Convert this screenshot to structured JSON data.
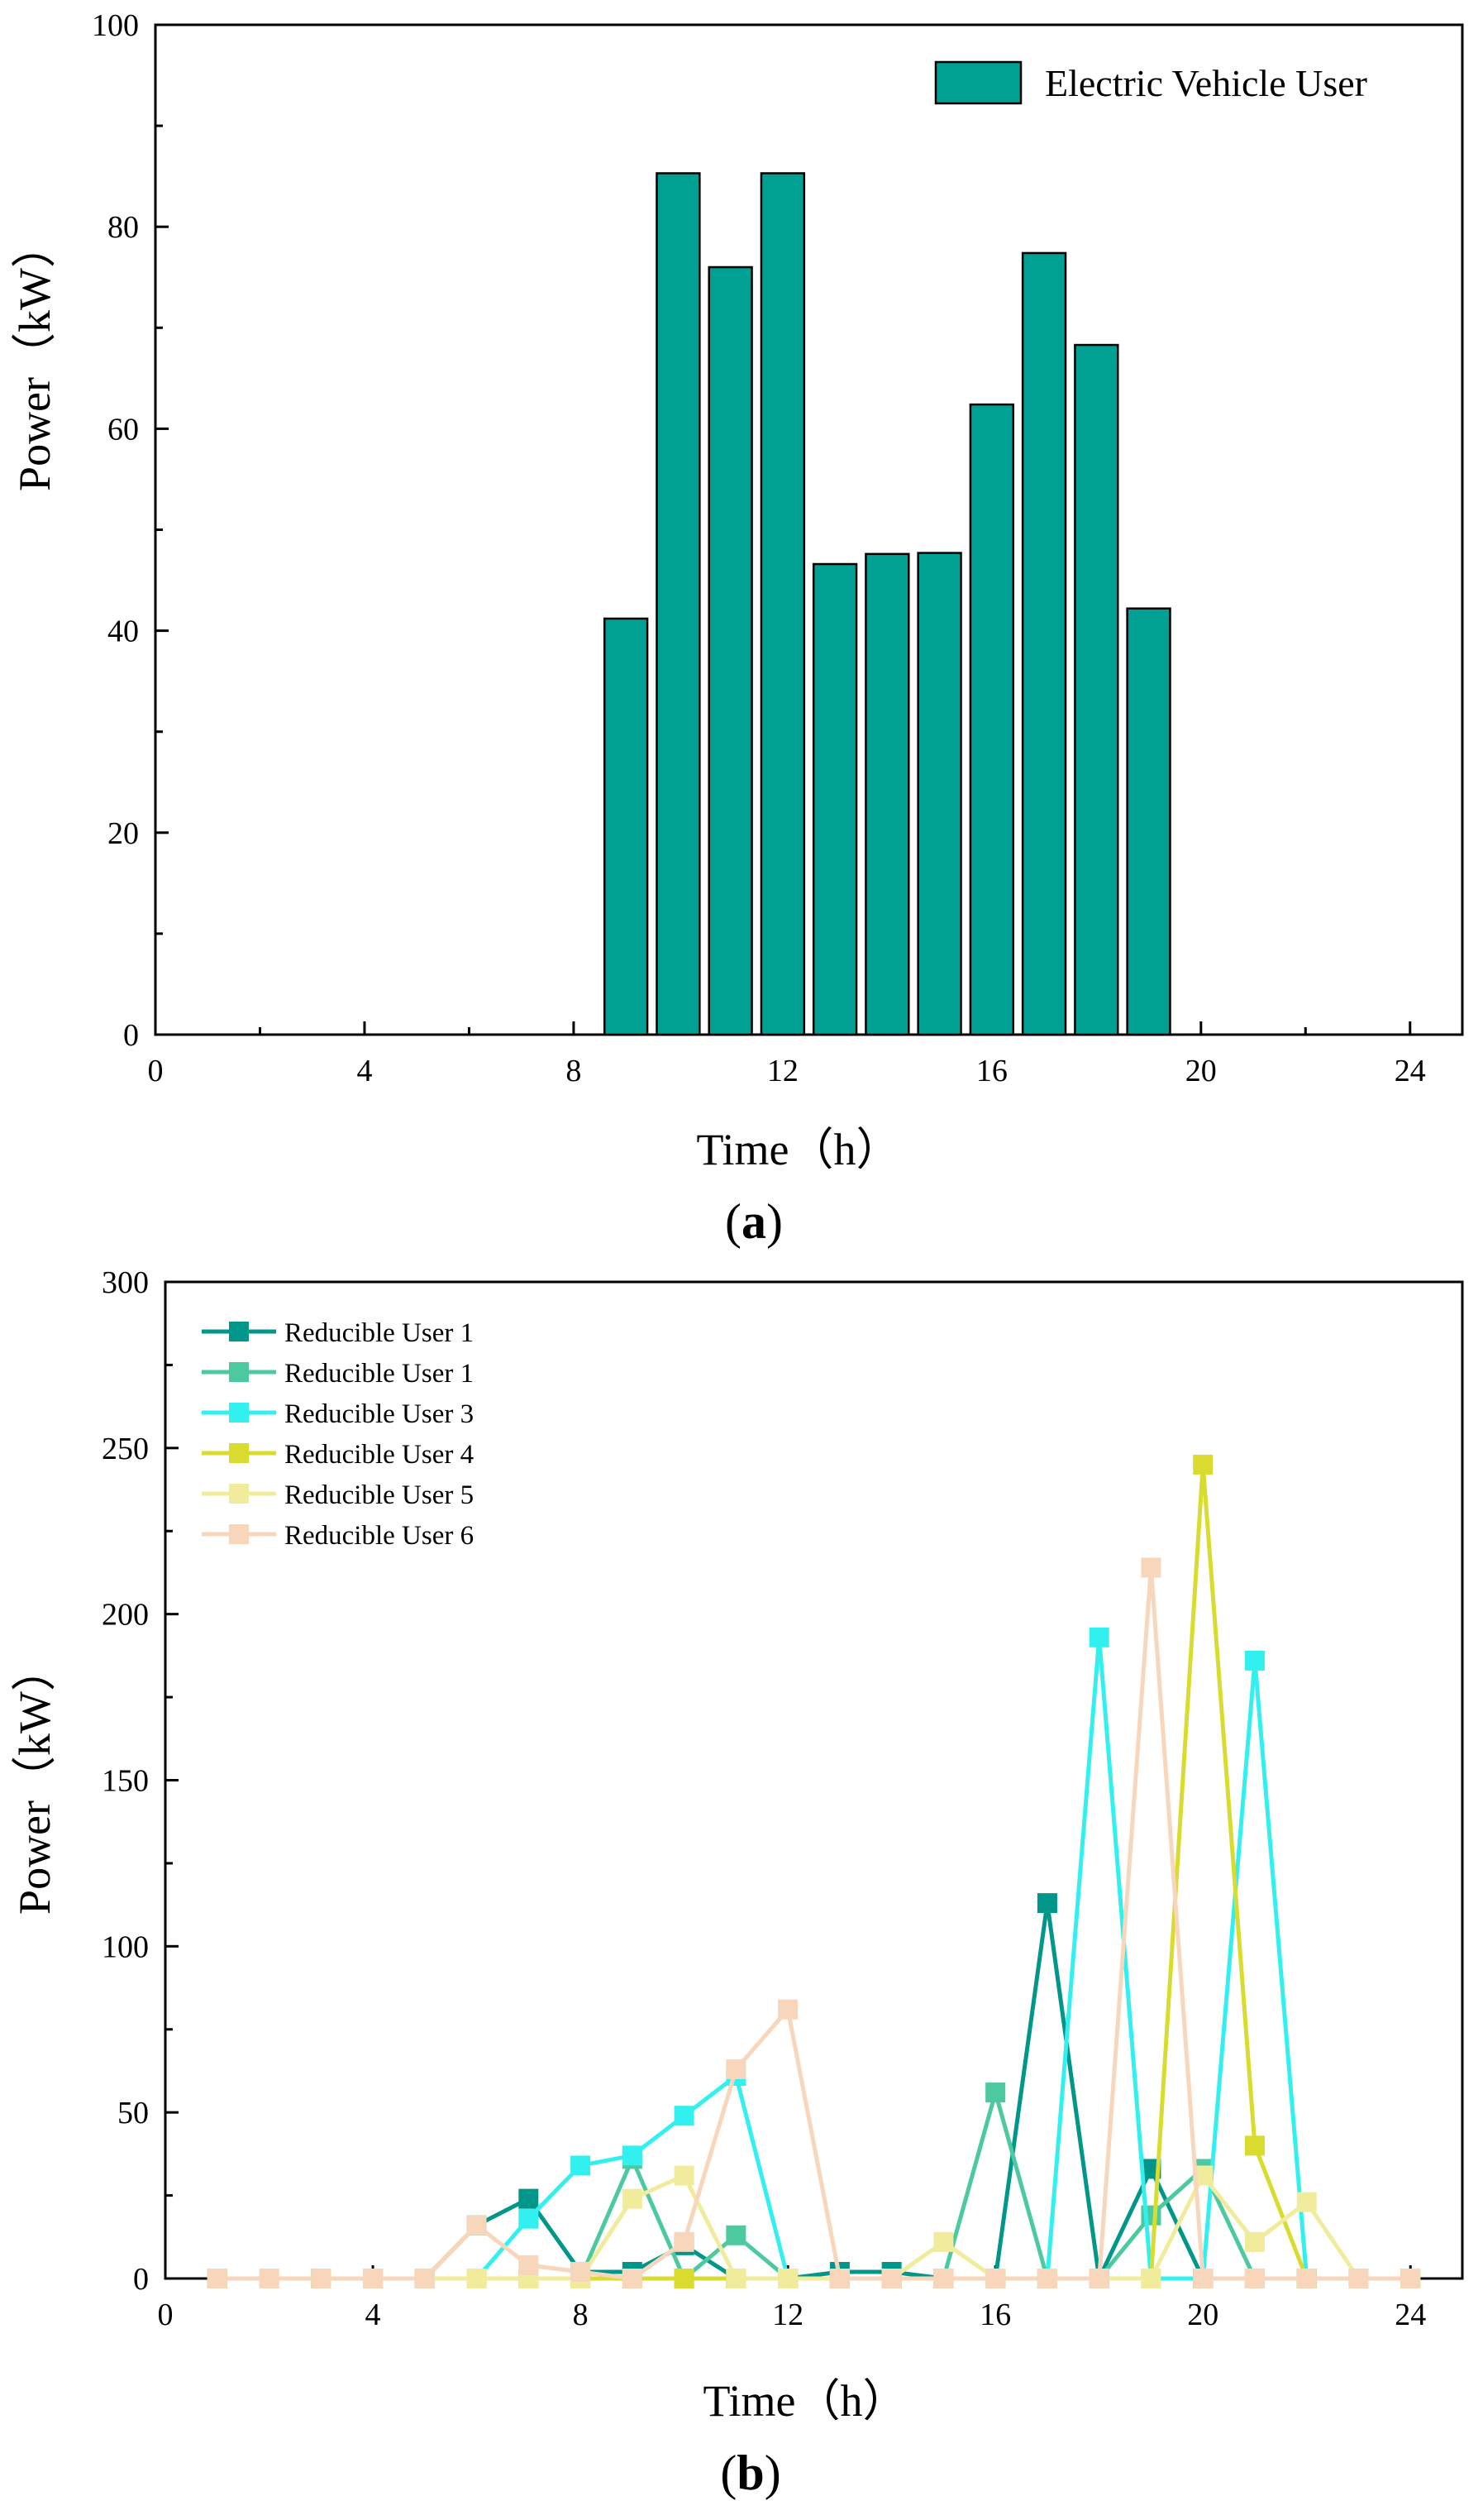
{
  "chart_data": [
    {
      "id": "a",
      "type": "bar",
      "panel_label_prefix": "(",
      "panel_label_letter": "a",
      "panel_label_suffix": ")",
      "xlabel": "Time（h）",
      "ylabel": "Power（kW）",
      "xlim": [
        0,
        25
      ],
      "ylim": [
        0,
        100
      ],
      "xticks": [
        0,
        4,
        8,
        12,
        16,
        20,
        24
      ],
      "yticks": [
        0,
        20,
        40,
        60,
        80,
        100
      ],
      "grid": false,
      "legend_position": "top-right",
      "color": "#00A093",
      "series": [
        {
          "name": "Electric Vehicle User",
          "x": [
            9,
            10,
            11,
            12,
            13,
            14,
            15,
            16,
            17,
            18,
            19
          ],
          "values": [
            41.2,
            85.3,
            76.0,
            85.3,
            46.6,
            47.6,
            47.7,
            62.4,
            77.4,
            68.3,
            42.2
          ]
        }
      ]
    },
    {
      "id": "b",
      "type": "line",
      "panel_label_prefix": "(",
      "panel_label_letter": "b",
      "panel_label_suffix": ")",
      "xlabel": "Time（h）",
      "ylabel": "Power（kW）",
      "xlim": [
        0,
        25
      ],
      "ylim": [
        0,
        300
      ],
      "xticks": [
        0,
        4,
        8,
        12,
        16,
        20,
        24
      ],
      "yticks": [
        0,
        50,
        100,
        150,
        200,
        250,
        300
      ],
      "grid": false,
      "legend_position": "top-left",
      "x": [
        1,
        2,
        3,
        4,
        5,
        6,
        7,
        8,
        9,
        10,
        11,
        12,
        13,
        14,
        15,
        16,
        17,
        18,
        19,
        20,
        21,
        22,
        23,
        24
      ],
      "series": [
        {
          "name": "Reducible User 1",
          "color": "#00968A",
          "values": [
            0,
            0,
            0,
            0,
            0,
            16,
            24,
            2,
            2,
            10,
            0,
            0,
            2,
            2,
            0,
            0,
            113,
            0,
            33,
            0,
            0,
            0,
            0,
            0
          ]
        },
        {
          "name": "Reducible User 1",
          "color": "#4DC9A0",
          "values": [
            0,
            0,
            0,
            0,
            0,
            0,
            0,
            0,
            36,
            0,
            13,
            0,
            0,
            0,
            0,
            56,
            0,
            0,
            19,
            33,
            0,
            0,
            0,
            0
          ]
        },
        {
          "name": "Reducible User 3",
          "color": "#33F0F0",
          "values": [
            0,
            0,
            0,
            0,
            0,
            0,
            18,
            34,
            37,
            49,
            61,
            0,
            0,
            0,
            0,
            0,
            0,
            193,
            0,
            0,
            186,
            0,
            0,
            0
          ]
        },
        {
          "name": "Reducible User 4",
          "color": "#D9DC2E",
          "values": [
            0,
            0,
            0,
            0,
            0,
            0,
            0,
            0,
            0,
            0,
            0,
            0,
            0,
            0,
            0,
            0,
            0,
            0,
            0,
            245,
            40,
            0,
            0,
            0
          ]
        },
        {
          "name": "Reducible User 5",
          "color": "#F0EC9C",
          "values": [
            0,
            0,
            0,
            0,
            0,
            0,
            0,
            0,
            24,
            31,
            0,
            0,
            0,
            0,
            11,
            0,
            0,
            0,
            0,
            31,
            11,
            23,
            0,
            0
          ]
        },
        {
          "name": "Reducible User 6",
          "color": "#F7D6BC",
          "values": [
            0,
            0,
            0,
            0,
            0,
            16,
            4,
            2,
            0,
            11,
            63,
            81,
            0,
            0,
            0,
            0,
            0,
            0,
            214,
            0,
            0,
            0,
            0,
            0
          ]
        }
      ]
    }
  ]
}
